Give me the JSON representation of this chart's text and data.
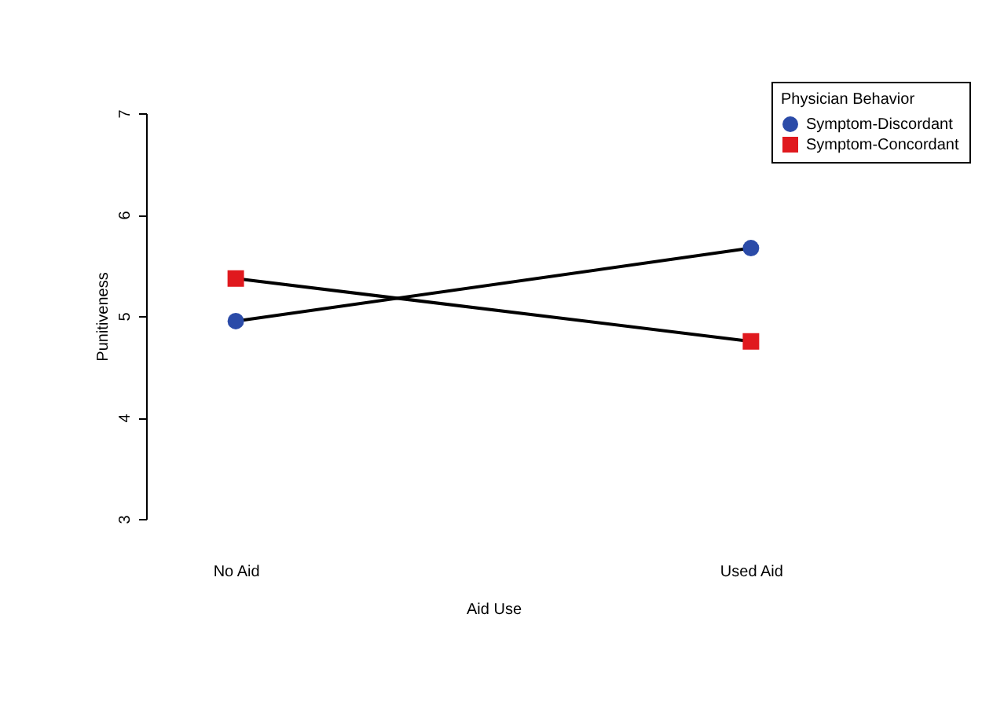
{
  "chart_data": {
    "type": "line",
    "xlabel": "Aid Use",
    "ylabel": "Punitiveness",
    "legend_title": "Physician Behavior",
    "categories": [
      "No Aid",
      "Used Aid"
    ],
    "series": [
      {
        "name": "Symptom-Discordant",
        "color": "#2b4ba8",
        "marker": "circle",
        "values": [
          4.95,
          5.67
        ]
      },
      {
        "name": "Symptom-Concordant",
        "color": "#e0191e",
        "marker": "square",
        "values": [
          5.37,
          4.75
        ]
      }
    ],
    "ylim": [
      3,
      7
    ],
    "yticks": [
      3,
      4,
      5,
      6,
      7
    ],
    "grid": false,
    "legend": "top right"
  }
}
